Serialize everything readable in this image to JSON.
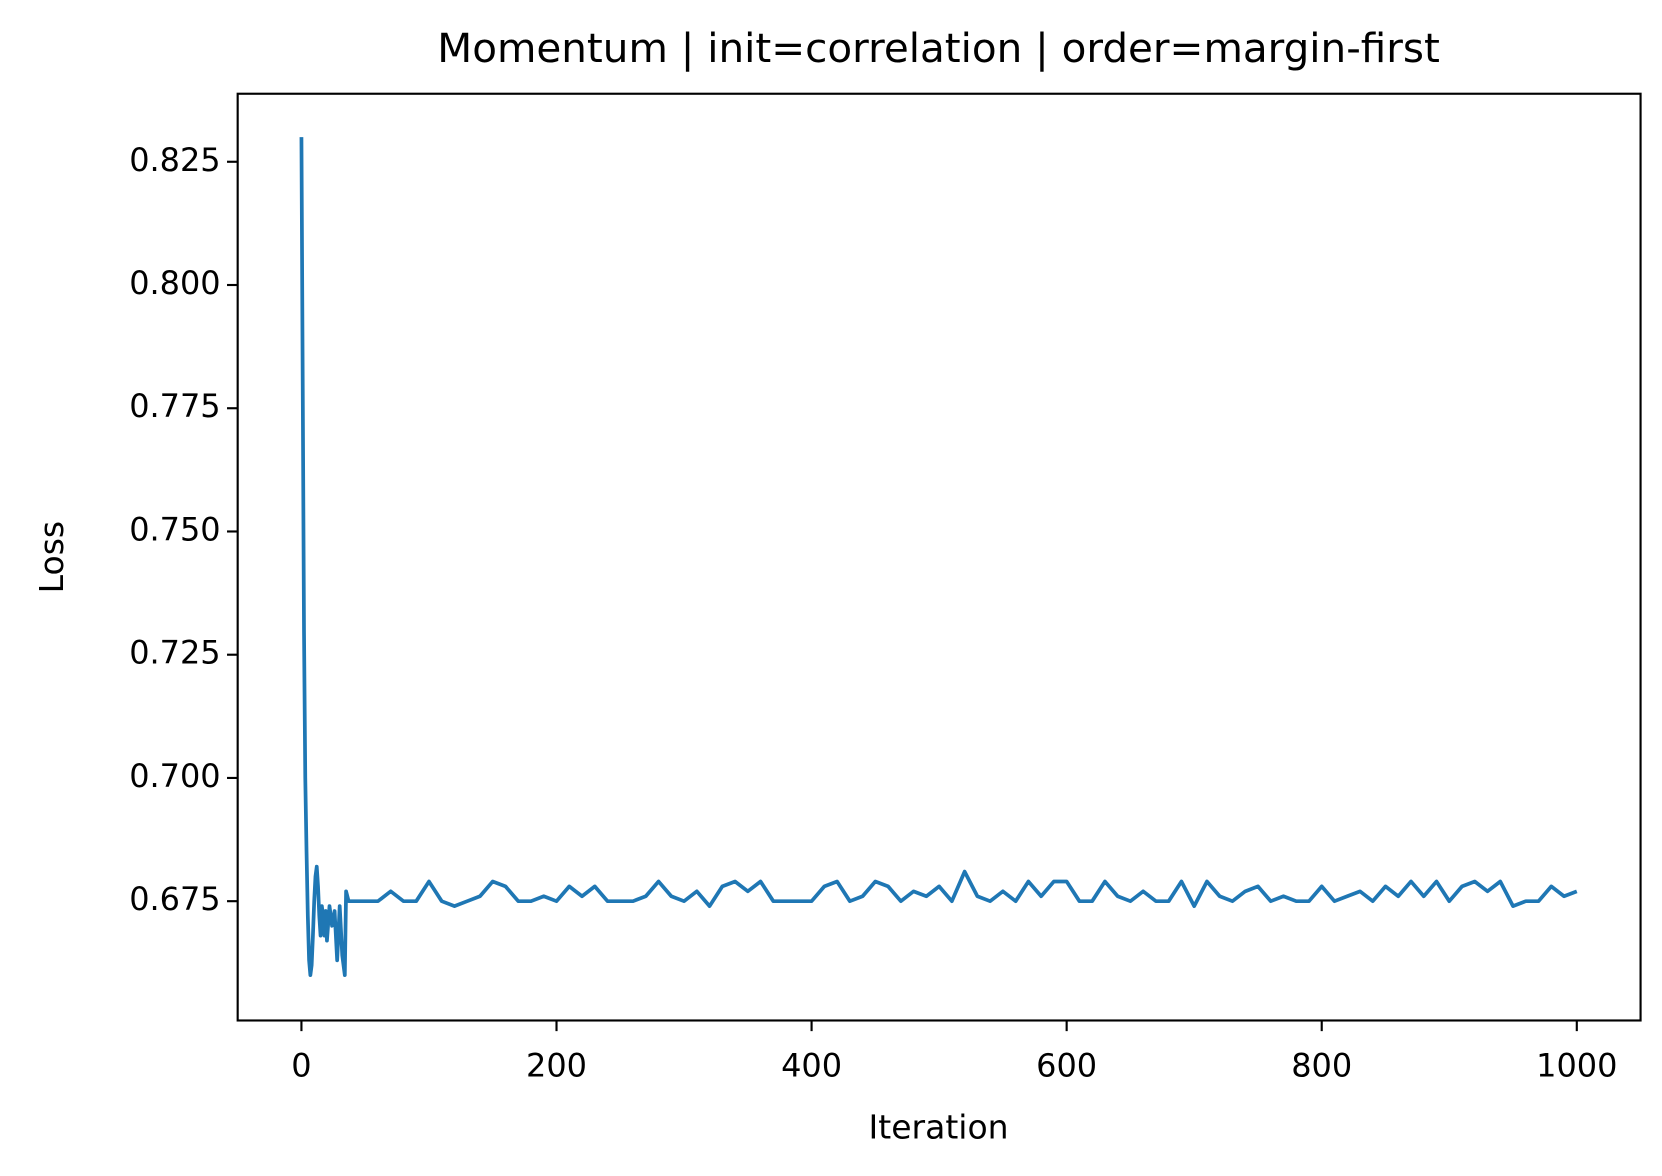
{
  "chart_data": {
    "type": "line",
    "title": "Momentum | init=correlation | order=margin-first",
    "x_label": "Iteration",
    "y_label": "Loss",
    "color": "#1f77b4",
    "x": [
      0,
      1,
      2,
      3,
      4,
      5,
      6,
      7,
      8,
      9,
      10,
      11,
      12,
      13,
      14,
      15,
      16,
      17,
      18,
      19,
      20,
      22,
      24,
      26,
      28,
      30,
      32,
      34,
      35,
      37,
      40,
      50,
      60,
      70,
      80,
      90,
      100,
      110,
      120,
      130,
      140,
      150,
      160,
      170,
      180,
      190,
      200,
      210,
      220,
      230,
      240,
      250,
      260,
      270,
      280,
      290,
      300,
      310,
      320,
      330,
      340,
      350,
      360,
      370,
      380,
      390,
      400,
      410,
      420,
      430,
      440,
      450,
      460,
      470,
      480,
      490,
      500,
      510,
      520,
      530,
      540,
      550,
      560,
      570,
      580,
      590,
      600,
      610,
      620,
      630,
      640,
      650,
      660,
      670,
      680,
      690,
      700,
      710,
      720,
      730,
      740,
      750,
      760,
      770,
      780,
      790,
      800,
      810,
      820,
      830,
      840,
      850,
      860,
      870,
      880,
      890,
      900,
      910,
      920,
      930,
      940,
      950,
      960,
      970,
      980,
      990,
      1000
    ],
    "values": [
      0.83,
      0.78,
      0.73,
      0.7,
      0.685,
      0.672,
      0.663,
      0.66,
      0.662,
      0.668,
      0.675,
      0.68,
      0.682,
      0.678,
      0.672,
      0.668,
      0.674,
      0.672,
      0.668,
      0.673,
      0.667,
      0.674,
      0.67,
      0.673,
      0.663,
      0.674,
      0.664,
      0.66,
      0.677,
      0.675,
      0.675,
      0.675,
      0.675,
      0.677,
      0.675,
      0.675,
      0.679,
      0.675,
      0.674,
      0.675,
      0.676,
      0.679,
      0.678,
      0.675,
      0.675,
      0.676,
      0.675,
      0.678,
      0.676,
      0.678,
      0.675,
      0.675,
      0.675,
      0.676,
      0.679,
      0.676,
      0.675,
      0.677,
      0.674,
      0.678,
      0.679,
      0.677,
      0.679,
      0.675,
      0.675,
      0.675,
      0.675,
      0.678,
      0.679,
      0.675,
      0.676,
      0.679,
      0.678,
      0.675,
      0.677,
      0.676,
      0.678,
      0.675,
      0.681,
      0.676,
      0.675,
      0.677,
      0.675,
      0.679,
      0.676,
      0.679,
      0.679,
      0.675,
      0.675,
      0.679,
      0.676,
      0.675,
      0.677,
      0.675,
      0.675,
      0.679,
      0.674,
      0.679,
      0.676,
      0.675,
      0.677,
      0.678,
      0.675,
      0.676,
      0.675,
      0.675,
      0.678,
      0.675,
      0.676,
      0.677,
      0.675,
      0.678,
      0.676,
      0.679,
      0.676,
      0.679,
      0.675,
      0.678,
      0.679,
      0.677,
      0.679,
      0.674,
      0.675,
      0.675,
      0.678,
      0.676,
      0.677
    ],
    "xlim": [
      -50,
      1050
    ],
    "xticks": [
      0,
      200,
      400,
      600,
      800,
      1000
    ],
    "ylim": [
      0.6508,
      0.8388
    ],
    "yticks": [
      0.675,
      {
        "value": 0.7,
        "label": "0.700"
      },
      0.725,
      {
        "value": 0.75,
        "label": "0.750"
      },
      0.775,
      {
        "value": 0.8,
        "label": "0.800"
      },
      0.825
    ],
    "grid": false
  }
}
